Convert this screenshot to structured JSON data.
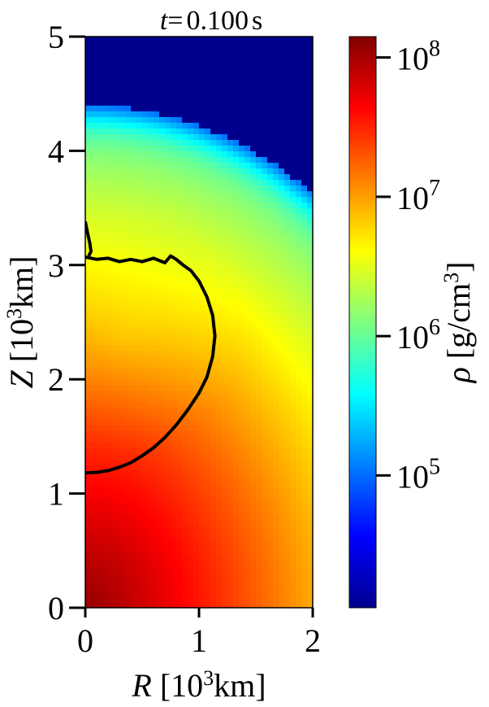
{
  "chart_data": {
    "type": "heatmap",
    "title": {
      "var": "t",
      "eq": "=",
      "value": "0.100",
      "unit": "s"
    },
    "xlabel": {
      "var": "R",
      "pre": "[10",
      "sup": "3",
      "post": "km]"
    },
    "ylabel": {
      "var": "Z",
      "pre": "[10",
      "sup": "3",
      "post": "km]"
    },
    "xlim": [
      0,
      2
    ],
    "ylim": [
      0,
      5
    ],
    "xticks": [
      "0",
      "1",
      "2"
    ],
    "yticks": [
      "0",
      "1",
      "2",
      "3",
      "4",
      "5"
    ],
    "colorbar": {
      "label": {
        "var": "ρ",
        "pre": "[g/cm",
        "sup": "3",
        "post": "]"
      },
      "scale": "log",
      "log_min": 4.05,
      "log_max": 8.15,
      "ticks": [
        {
          "base": "10",
          "exp": "5",
          "log": 5
        },
        {
          "base": "10",
          "exp": "6",
          "log": 6
        },
        {
          "base": "10",
          "exp": "7",
          "log": 7
        },
        {
          "base": "10",
          "exp": "8",
          "log": 8
        }
      ],
      "colormap": "jet"
    },
    "density_model": {
      "units_x": "10^3 km",
      "units_y": "10^3 km",
      "core_log_rho": 8.05,
      "core_slope": 0.72,
      "surface_radius_at_pole": 4.4,
      "surface_radius_at_equator": 3.55,
      "outer_log_rho": 4.1,
      "bubble": {
        "center": [
          0.35,
          2.4
        ],
        "radius": 1.05,
        "log_rho_offset": -0.25
      }
    },
    "contour": {
      "color": "#000000",
      "points": [
        [
          0.0,
          1.18
        ],
        [
          0.1,
          1.185
        ],
        [
          0.2,
          1.2
        ],
        [
          0.3,
          1.23
        ],
        [
          0.4,
          1.27
        ],
        [
          0.5,
          1.33
        ],
        [
          0.6,
          1.4
        ],
        [
          0.7,
          1.49
        ],
        [
          0.8,
          1.6
        ],
        [
          0.9,
          1.73
        ],
        [
          1.0,
          1.88
        ],
        [
          1.07,
          2.02
        ],
        [
          1.12,
          2.2
        ],
        [
          1.14,
          2.38
        ],
        [
          1.12,
          2.56
        ],
        [
          1.07,
          2.72
        ],
        [
          1.0,
          2.86
        ],
        [
          0.93,
          2.95
        ],
        [
          0.86,
          3.0
        ],
        [
          0.8,
          3.05
        ],
        [
          0.75,
          3.08
        ],
        [
          0.7,
          3.02
        ],
        [
          0.6,
          3.06
        ],
        [
          0.5,
          3.03
        ],
        [
          0.4,
          3.05
        ],
        [
          0.3,
          3.03
        ],
        [
          0.2,
          3.06
        ],
        [
          0.1,
          3.05
        ],
        [
          0.0,
          3.07
        ]
      ],
      "upper_branch": [
        [
          0.0,
          3.38
        ],
        [
          0.02,
          3.28
        ],
        [
          0.04,
          3.19
        ],
        [
          0.05,
          3.12
        ],
        [
          0.03,
          3.08
        ]
      ]
    },
    "grid": false
  }
}
